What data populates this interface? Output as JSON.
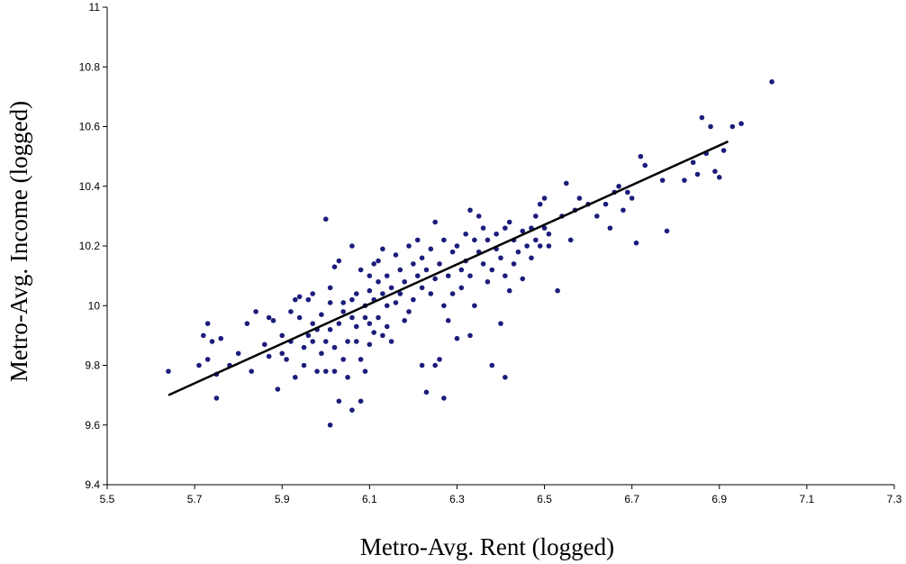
{
  "chart_data": {
    "type": "scatter",
    "title": "",
    "xlabel": "Metro-Avg. Rent (logged)",
    "ylabel": "Metro-Avg. Income (logged)",
    "xlim": [
      5.5,
      7.3
    ],
    "ylim": [
      9.4,
      11
    ],
    "xticks": [
      "5.5",
      "5.7",
      "5.9",
      "6.1",
      "6.3",
      "6.5",
      "6.7",
      "6.9",
      "7.1",
      "7.3"
    ],
    "yticks": [
      "9.4",
      "9.6",
      "9.8",
      "10",
      "10.2",
      "10.4",
      "10.6",
      "10.8",
      "11"
    ],
    "grid": false,
    "legend": "none",
    "point_color": "#1c1c7c",
    "trendline": {
      "x": [
        5.64,
        6.92
      ],
      "y": [
        9.7,
        10.55
      ]
    },
    "points": [
      [
        5.64,
        9.78
      ],
      [
        5.71,
        9.8
      ],
      [
        5.72,
        9.9
      ],
      [
        5.73,
        9.82
      ],
      [
        5.73,
        9.94
      ],
      [
        5.74,
        9.88
      ],
      [
        5.75,
        9.69
      ],
      [
        5.75,
        9.77
      ],
      [
        5.76,
        9.89
      ],
      [
        5.78,
        9.8
      ],
      [
        5.8,
        9.84
      ],
      [
        5.82,
        9.94
      ],
      [
        5.83,
        9.78
      ],
      [
        5.84,
        9.98
      ],
      [
        5.86,
        9.87
      ],
      [
        5.87,
        9.83
      ],
      [
        5.87,
        9.96
      ],
      [
        5.88,
        9.95
      ],
      [
        5.89,
        9.72
      ],
      [
        5.9,
        9.84
      ],
      [
        5.9,
        9.9
      ],
      [
        5.91,
        9.82
      ],
      [
        5.92,
        9.88
      ],
      [
        5.92,
        9.98
      ],
      [
        5.93,
        10.02
      ],
      [
        5.93,
        9.76
      ],
      [
        5.94,
        9.96
      ],
      [
        5.94,
        10.03
      ],
      [
        5.95,
        9.86
      ],
      [
        5.95,
        9.8
      ],
      [
        5.96,
        10.02
      ],
      [
        5.96,
        9.9
      ],
      [
        5.97,
        9.94
      ],
      [
        5.97,
        10.04
      ],
      [
        5.97,
        9.88
      ],
      [
        5.98,
        9.78
      ],
      [
        5.98,
        9.92
      ],
      [
        5.99,
        9.84
      ],
      [
        5.99,
        9.97
      ],
      [
        6.0,
        9.88
      ],
      [
        6.0,
        10.29
      ],
      [
        6.0,
        9.78
      ],
      [
        6.01,
        10.01
      ],
      [
        6.01,
        10.06
      ],
      [
        6.01,
        9.92
      ],
      [
        6.01,
        9.6
      ],
      [
        6.02,
        9.86
      ],
      [
        6.02,
        10.13
      ],
      [
        6.02,
        9.78
      ],
      [
        6.03,
        9.68
      ],
      [
        6.03,
        10.15
      ],
      [
        6.03,
        9.94
      ],
      [
        6.04,
        10.01
      ],
      [
        6.04,
        9.98
      ],
      [
        6.04,
        9.82
      ],
      [
        6.05,
        9.88
      ],
      [
        6.05,
        9.76
      ],
      [
        6.06,
        10.02
      ],
      [
        6.06,
        9.96
      ],
      [
        6.06,
        9.65
      ],
      [
        6.06,
        10.2
      ],
      [
        6.07,
        9.93
      ],
      [
        6.07,
        9.88
      ],
      [
        6.07,
        10.04
      ],
      [
        6.08,
        9.68
      ],
      [
        6.08,
        9.82
      ],
      [
        6.08,
        10.12
      ],
      [
        6.09,
        10.0
      ],
      [
        6.09,
        9.96
      ],
      [
        6.09,
        9.78
      ],
      [
        6.1,
        10.1
      ],
      [
        6.1,
        10.05
      ],
      [
        6.1,
        9.94
      ],
      [
        6.1,
        9.87
      ],
      [
        6.11,
        10.14
      ],
      [
        6.11,
        10.02
      ],
      [
        6.11,
        9.91
      ],
      [
        6.12,
        10.08
      ],
      [
        6.12,
        10.15
      ],
      [
        6.12,
        9.96
      ],
      [
        6.13,
        10.04
      ],
      [
        6.13,
        9.9
      ],
      [
        6.13,
        10.19
      ],
      [
        6.14,
        10.0
      ],
      [
        6.14,
        9.93
      ],
      [
        6.14,
        10.1
      ],
      [
        6.15,
        9.88
      ],
      [
        6.15,
        10.06
      ],
      [
        6.16,
        10.01
      ],
      [
        6.16,
        10.17
      ],
      [
        6.17,
        10.12
      ],
      [
        6.17,
        10.04
      ],
      [
        6.18,
        9.95
      ],
      [
        6.18,
        10.08
      ],
      [
        6.19,
        10.2
      ],
      [
        6.19,
        9.98
      ],
      [
        6.2,
        10.14
      ],
      [
        6.2,
        10.02
      ],
      [
        6.21,
        10.22
      ],
      [
        6.21,
        10.1
      ],
      [
        6.22,
        10.06
      ],
      [
        6.22,
        9.8
      ],
      [
        6.22,
        10.16
      ],
      [
        6.23,
        10.12
      ],
      [
        6.23,
        9.71
      ],
      [
        6.24,
        10.04
      ],
      [
        6.24,
        10.19
      ],
      [
        6.25,
        10.09
      ],
      [
        6.25,
        10.28
      ],
      [
        6.25,
        9.8
      ],
      [
        6.26,
        10.14
      ],
      [
        6.26,
        9.82
      ],
      [
        6.27,
        10.0
      ],
      [
        6.27,
        10.22
      ],
      [
        6.27,
        9.69
      ],
      [
        6.28,
        10.1
      ],
      [
        6.28,
        9.95
      ],
      [
        6.29,
        10.18
      ],
      [
        6.29,
        10.04
      ],
      [
        6.3,
        10.2
      ],
      [
        6.3,
        9.89
      ],
      [
        6.31,
        10.12
      ],
      [
        6.31,
        10.06
      ],
      [
        6.32,
        10.24
      ],
      [
        6.32,
        10.15
      ],
      [
        6.33,
        10.32
      ],
      [
        6.33,
        10.1
      ],
      [
        6.33,
        9.9
      ],
      [
        6.34,
        10.22
      ],
      [
        6.34,
        10.0
      ],
      [
        6.35,
        10.3
      ],
      [
        6.35,
        10.18
      ],
      [
        6.36,
        10.14
      ],
      [
        6.36,
        10.26
      ],
      [
        6.37,
        10.08
      ],
      [
        6.37,
        10.22
      ],
      [
        6.38,
        9.8
      ],
      [
        6.38,
        10.12
      ],
      [
        6.39,
        10.24
      ],
      [
        6.39,
        10.19
      ],
      [
        6.4,
        10.16
      ],
      [
        6.4,
        9.94
      ],
      [
        6.41,
        10.26
      ],
      [
        6.41,
        9.76
      ],
      [
        6.41,
        10.1
      ],
      [
        6.42,
        10.05
      ],
      [
        6.42,
        10.28
      ],
      [
        6.43,
        10.22
      ],
      [
        6.43,
        10.14
      ],
      [
        6.44,
        10.18
      ],
      [
        6.45,
        10.25
      ],
      [
        6.45,
        10.09
      ],
      [
        6.46,
        10.2
      ],
      [
        6.47,
        10.26
      ],
      [
        6.47,
        10.16
      ],
      [
        6.48,
        10.3
      ],
      [
        6.48,
        10.22
      ],
      [
        6.49,
        10.34
      ],
      [
        6.49,
        10.2
      ],
      [
        6.5,
        10.36
      ],
      [
        6.5,
        10.26
      ],
      [
        6.51,
        10.24
      ],
      [
        6.51,
        10.2
      ],
      [
        6.53,
        10.05
      ],
      [
        6.54,
        10.3
      ],
      [
        6.55,
        10.41
      ],
      [
        6.56,
        10.22
      ],
      [
        6.57,
        10.32
      ],
      [
        6.58,
        10.36
      ],
      [
        6.6,
        10.34
      ],
      [
        6.62,
        10.3
      ],
      [
        6.64,
        10.34
      ],
      [
        6.65,
        10.26
      ],
      [
        6.66,
        10.38
      ],
      [
        6.67,
        10.4
      ],
      [
        6.68,
        10.32
      ],
      [
        6.69,
        10.38
      ],
      [
        6.7,
        10.36
      ],
      [
        6.71,
        10.21
      ],
      [
        6.72,
        10.5
      ],
      [
        6.73,
        10.47
      ],
      [
        6.77,
        10.42
      ],
      [
        6.78,
        10.25
      ],
      [
        6.82,
        10.42
      ],
      [
        6.84,
        10.48
      ],
      [
        6.85,
        10.44
      ],
      [
        6.86,
        10.63
      ],
      [
        6.87,
        10.51
      ],
      [
        6.88,
        10.6
      ],
      [
        6.89,
        10.45
      ],
      [
        6.9,
        10.43
      ],
      [
        6.91,
        10.52
      ],
      [
        6.93,
        10.6
      ],
      [
        6.95,
        10.61
      ],
      [
        7.02,
        10.75
      ]
    ]
  }
}
